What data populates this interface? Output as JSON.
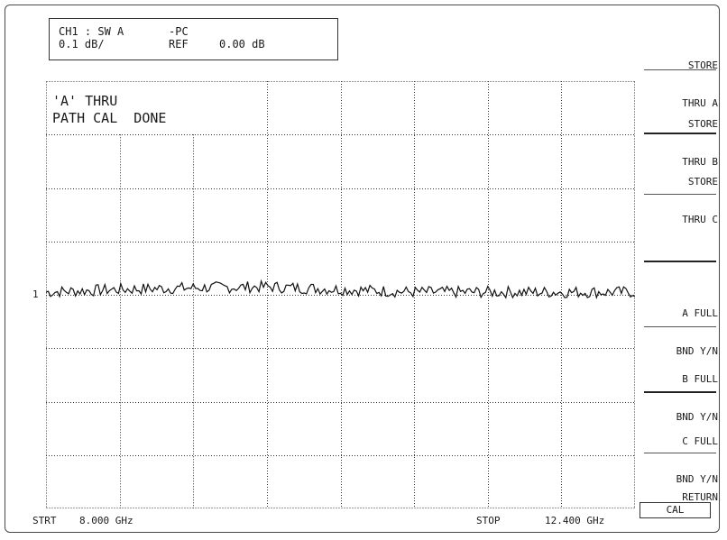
{
  "status": {
    "line1_channel": "CH1 : SW A",
    "line1_mode": "-PC",
    "line2_scale": "0.1 dB/",
    "line2_ref_label": "REF",
    "line2_ref_value": "0.00 dB"
  },
  "message": {
    "line1": "'A' THRU",
    "line2": "PATH CAL  DONE"
  },
  "ref_marker": "1",
  "x_axis": {
    "start_label": "STRT",
    "start_value": "8.000 GHz",
    "stop_label": "STOP",
    "stop_value": "12.400 GHz"
  },
  "softkeys": [
    {
      "line1": "STORE",
      "line2": "THRU A"
    },
    {
      "line1": "STORE",
      "line2": "THRU B"
    },
    {
      "line1": "STORE",
      "line2": "THRU C"
    },
    {
      "line1": "A FULL",
      "line2": "BND Y/N"
    },
    {
      "line1": "B FULL",
      "line2": "BND Y/N"
    },
    {
      "line1": "C FULL",
      "line2": "BND Y/N"
    },
    {
      "line1": "RETURN",
      "line2": ""
    }
  ],
  "menu_title": "CAL",
  "chart_data": {
    "type": "line",
    "x_start_ghz": 8.0,
    "x_stop_ghz": 12.4,
    "scale_db_per_div": 0.1,
    "ref_db": 0.0,
    "series": [
      {
        "x": [
          8.0,
          8.55,
          9.1,
          9.65,
          10.2,
          10.75,
          11.3,
          11.85,
          12.4
        ],
        "y": [
          0.0,
          0.005,
          0.008,
          0.01,
          0.005,
          0.0,
          0.0,
          0.0,
          0.0
        ]
      }
    ]
  }
}
